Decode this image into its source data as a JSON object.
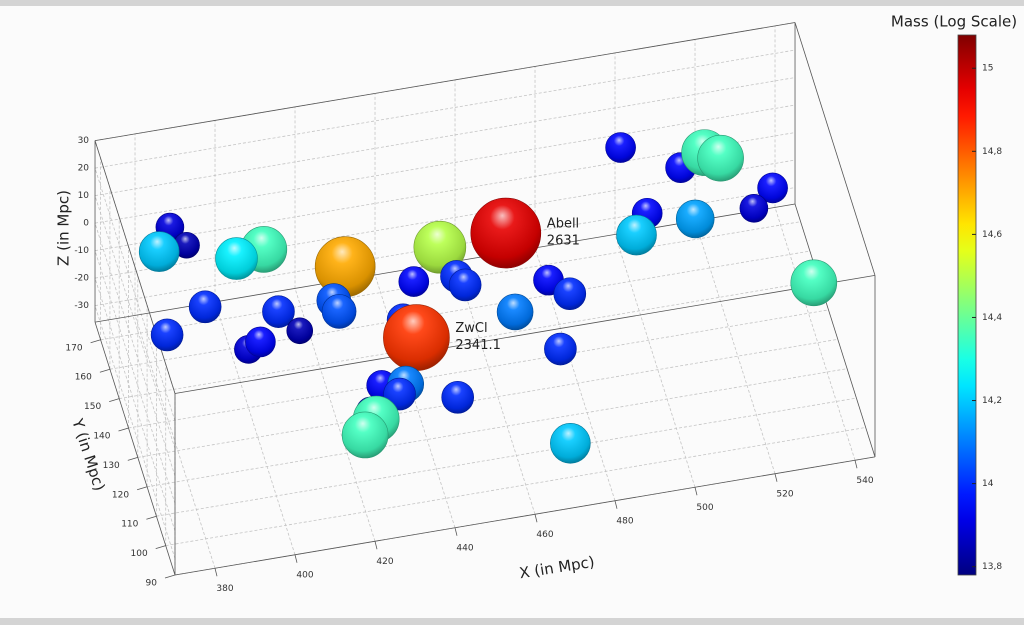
{
  "chart_data": {
    "type": "scatter3d",
    "colorbar_title": "Mass (Log Scale)",
    "xlabel": "X (in Mpc)",
    "ylabel": "Y (in Mpc)",
    "zlabel": "Z (in Mpc)",
    "xlim": [
      370,
      545
    ],
    "ylim": [
      90,
      176
    ],
    "zlim": [
      -36,
      30
    ],
    "xticks": [
      380,
      400,
      420,
      440,
      460,
      480,
      500,
      520,
      540
    ],
    "yticks": [
      90,
      100,
      110,
      120,
      130,
      140,
      150,
      160,
      170
    ],
    "zticks": [
      -30,
      -20,
      -10,
      0,
      10,
      20,
      30
    ],
    "grid": true,
    "colormap": "jet",
    "clim": [
      13.78,
      15.08
    ],
    "colorbar_ticks": [
      {
        "value": 13.8,
        "label": "13,8"
      },
      14,
      {
        "value": 14.2,
        "label": "14,2"
      },
      {
        "value": 14.4,
        "label": "14,4"
      },
      {
        "value": 14.6,
        "label": "14,6"
      },
      {
        "value": 14.8,
        "label": "14,8"
      },
      15
    ],
    "x": [
      385,
      388,
      380,
      397,
      405,
      423,
      449,
      462,
      439,
      452,
      453,
      475,
      478,
      462,
      388,
      404,
      419,
      418,
      407,
      375,
      396,
      393,
      434,
      435,
      471,
      430,
      424,
      428,
      443,
      420,
      421,
      418,
      470,
      500,
      515,
      521,
      525,
      538,
      531,
      502,
      514,
      497,
      539
    ],
    "y": [
      160,
      155,
      150,
      140,
      145,
      135,
      145,
      130,
      130,
      140,
      135,
      140,
      130,
      120,
      135,
      125,
      130,
      120,
      115,
      120,
      110,
      110,
      120,
      110,
      110,
      100,
      100,
      98,
      100,
      95,
      93,
      92,
      95,
      170,
      170,
      170,
      170,
      170,
      160,
      150,
      150,
      140,
      130
    ],
    "z": [
      12,
      10,
      15,
      19,
      15,
      15,
      5,
      23,
      11,
      -1,
      1,
      -8,
      -3,
      5,
      9,
      14,
      9,
      16,
      17,
      18,
      21,
      19,
      9,
      13,
      0,
      8,
      9,
      7,
      0,
      6,
      5,
      1,
      -18,
      2,
      -9,
      -5,
      -8,
      -22,
      -17,
      -1,
      -6,
      3,
      -14
    ],
    "values": [
      13.9,
      13.85,
      14.2,
      14.25,
      14.35,
      14.7,
      14.5,
      14.95,
      13.95,
      14.0,
      14.0,
      13.95,
      14.0,
      14.1,
      14.0,
      14.0,
      14.05,
      14.05,
      13.85,
      14.0,
      13.95,
      13.9,
      14.0,
      14.85,
      14.0,
      14.1,
      13.95,
      14.0,
      14.0,
      13.9,
      14.35,
      14.35,
      14.2,
      13.95,
      13.95,
      14.35,
      14.35,
      13.95,
      13.9,
      13.95,
      14.15,
      14.2,
      14.35
    ],
    "labels": [
      null,
      null,
      null,
      null,
      null,
      null,
      null,
      [
        "Abell",
        "2631"
      ],
      null,
      null,
      null,
      null,
      null,
      null,
      null,
      null,
      null,
      null,
      null,
      null,
      null,
      null,
      null,
      [
        "ZwCl",
        "2341.1"
      ],
      null,
      null,
      null,
      null,
      null,
      null,
      null,
      null,
      null,
      null,
      null,
      null,
      null,
      null,
      null,
      null,
      null,
      null,
      null
    ]
  }
}
